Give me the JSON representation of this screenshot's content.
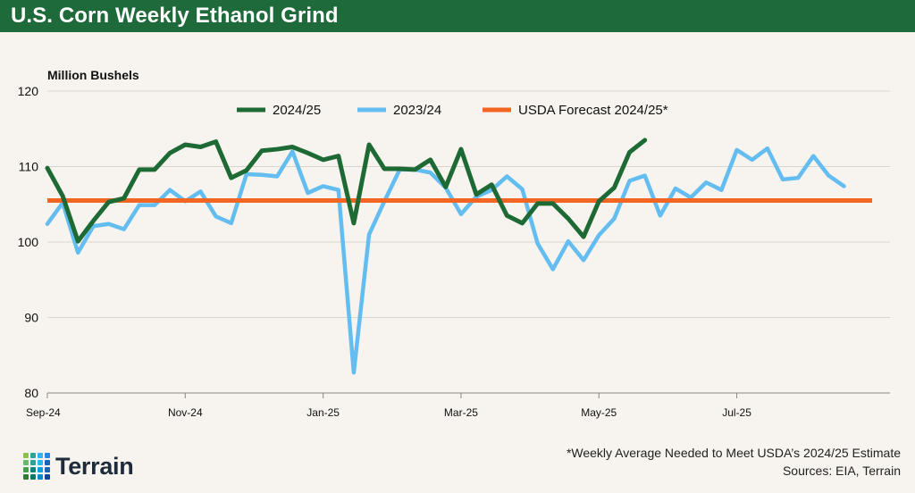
{
  "header": {
    "title": "U.S. Corn Weekly Ethanol Grind"
  },
  "colors": {
    "brand_green": "#1e6a3a",
    "series_2425": "#1d6a35",
    "series_2324": "#63bdf0",
    "forecast": "#f26522",
    "background": "#f7f3ee"
  },
  "chart_data": {
    "type": "line",
    "title": "U.S. Corn Weekly Ethanol Grind",
    "ylabel": "Million Bushels",
    "xlabel": "",
    "ylim": [
      80,
      120
    ],
    "yticks": [
      80,
      90,
      100,
      110,
      120
    ],
    "x_domain_weeks": [
      0,
      55
    ],
    "xticks": [
      {
        "label": "Sep-24",
        "week": 0
      },
      {
        "label": "Nov-24",
        "week": 9
      },
      {
        "label": "Jan-25",
        "week": 18
      },
      {
        "label": "Mar-25",
        "week": 27
      },
      {
        "label": "May-25",
        "week": 36
      },
      {
        "label": "Jul-25",
        "week": 45
      }
    ],
    "legend_position": "top-center",
    "grid": "horizontal",
    "series": [
      {
        "name": "2024/25",
        "color": "#1d6a35",
        "values": [
          109.8,
          106.1,
          100.1,
          102.8,
          105.3,
          105.8,
          109.6,
          109.6,
          111.8,
          112.9,
          112.6,
          113.3,
          108.5,
          109.5,
          112.1,
          112.3,
          112.6,
          111.8,
          110.9,
          111.4,
          102.5,
          112.9,
          109.7,
          109.7,
          109.6,
          110.9,
          107.3,
          112.3,
          106.3,
          107.6,
          103.5,
          102.5,
          105.1,
          105.1,
          103.1,
          100.7,
          105.4,
          107.2,
          111.9,
          113.5
        ]
      },
      {
        "name": "2023/24",
        "color": "#63bdf0",
        "values": [
          102.4,
          105.2,
          98.6,
          102.1,
          102.4,
          101.7,
          104.9,
          104.9,
          106.9,
          105.4,
          106.7,
          103.4,
          102.5,
          109.0,
          108.9,
          108.7,
          112.0,
          106.5,
          107.4,
          106.9,
          82.7,
          101.0,
          105.4,
          109.6,
          109.6,
          109.2,
          107.2,
          103.7,
          106.0,
          106.9,
          108.7,
          107.0,
          99.8,
          96.4,
          100.1,
          97.6,
          100.9,
          103.1,
          108.1,
          108.8,
          103.5,
          107.1,
          105.9,
          107.9,
          106.9,
          112.2,
          110.9,
          112.4,
          108.3,
          108.5,
          111.4,
          108.8,
          107.4
        ]
      },
      {
        "name": "USDA Forecast 2024/25*",
        "color": "#f26522",
        "value": 105.5,
        "x_range": [
          0,
          55
        ]
      }
    ]
  },
  "footer": {
    "note": "*Weekly Average Needed to Meet USDA’s 2024/25 Estimate",
    "sources": "Sources: EIA, Terrain",
    "logo_text": "Terrain"
  }
}
